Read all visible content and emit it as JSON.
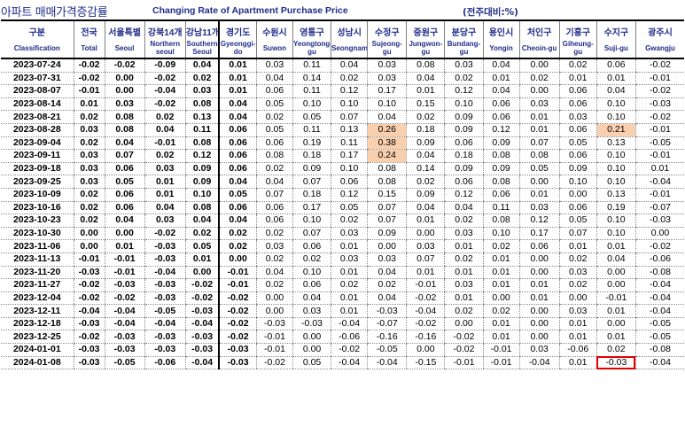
{
  "title": {
    "korean": "아파트 매매가격증감률",
    "english": "Changing Rate of Apartment Purchase Price",
    "unit": "(전주대비:%)"
  },
  "columns": [
    {
      "ko": "구분",
      "en": "Classification"
    },
    {
      "ko": "전국",
      "en": "Total"
    },
    {
      "ko": "서울특별시",
      "en": "Seoul"
    },
    {
      "ko": "강북14개구",
      "en": "Northern seoul"
    },
    {
      "ko": "강남11개구",
      "en": "Southern Seoul"
    },
    {
      "ko": "경기도",
      "en": "Gyeonggi-do"
    },
    {
      "ko": "수원시",
      "en": "Suwon"
    },
    {
      "ko": "영통구",
      "en": "Yeongtong-gu"
    },
    {
      "ko": "성남시",
      "en": "Seongnam"
    },
    {
      "ko": "수정구",
      "en": "Sujeong-gu"
    },
    {
      "ko": "중원구",
      "en": "Jungwon-gu"
    },
    {
      "ko": "분당구",
      "en": "Bundang-gu"
    },
    {
      "ko": "용인시",
      "en": "Yongin"
    },
    {
      "ko": "처인구",
      "en": "Cheoin-gu"
    },
    {
      "ko": "기흥구",
      "en": "Giheung-gu"
    },
    {
      "ko": "수지구",
      "en": "Suji-gu"
    },
    {
      "ko": "광주시",
      "en": "Gwangju"
    }
  ],
  "header_display": {
    "ko": [
      "구분",
      "전국",
      "서울특별",
      "강북14개",
      "강남11개",
      "경기도",
      "수원시",
      "영통구",
      "성남시",
      "수정구",
      "중원구",
      "분당구",
      "용인시",
      "처인구",
      "기흥구",
      "수지구",
      "광주시"
    ],
    "en": [
      "Classification",
      "Total",
      "Seoul",
      "Northern seoul",
      "Southern Seoul",
      "Gyeonggi-do",
      "Suwon",
      "Yeongtong-gu",
      "Seongnam",
      "Sujeong-gu",
      "Jungwon-gu",
      "Bundang-gu",
      "Yongin",
      "Cheoin-gu",
      "Giheung-gu",
      "Suji-gu",
      "Gwangju"
    ]
  },
  "rows": [
    [
      "2023-07-24",
      "-0.02",
      "-0.02",
      "-0.09",
      "0.04",
      "0.01",
      "0.03",
      "0.11",
      "0.04",
      "0.03",
      "0.08",
      "0.03",
      "0.04",
      "0.00",
      "0.02",
      "0.06",
      "-0.02"
    ],
    [
      "2023-07-31",
      "-0.02",
      "0.00",
      "-0.02",
      "0.02",
      "0.01",
      "0.04",
      "0.14",
      "0.02",
      "0.03",
      "0.04",
      "0.02",
      "0.01",
      "0.02",
      "0.01",
      "0.01",
      "-0.01"
    ],
    [
      "2023-08-07",
      "-0.01",
      "0.00",
      "-0.04",
      "0.03",
      "0.01",
      "0.06",
      "0.11",
      "0.12",
      "0.17",
      "0.01",
      "0.12",
      "0.04",
      "0.00",
      "0.06",
      "0.04",
      "-0.02"
    ],
    [
      "2023-08-14",
      "0.01",
      "0.03",
      "-0.02",
      "0.08",
      "0.04",
      "0.05",
      "0.10",
      "0.10",
      "0.10",
      "0.15",
      "0.10",
      "0.06",
      "0.03",
      "0.06",
      "0.10",
      "-0.03"
    ],
    [
      "2023-08-21",
      "0.02",
      "0.08",
      "0.02",
      "0.13",
      "0.04",
      "0.02",
      "0.05",
      "0.07",
      "0.04",
      "0.02",
      "0.09",
      "0.06",
      "0.01",
      "0.03",
      "0.10",
      "-0.02"
    ],
    [
      "2023-08-28",
      "0.03",
      "0.08",
      "0.04",
      "0.11",
      "0.06",
      "0.05",
      "0.11",
      "0.13",
      "0.26",
      "0.18",
      "0.09",
      "0.12",
      "0.01",
      "0.06",
      "0.21",
      "-0.01"
    ],
    [
      "2023-09-04",
      "0.02",
      "0.04",
      "-0.01",
      "0.08",
      "0.06",
      "0.06",
      "0.19",
      "0.11",
      "0.38",
      "0.09",
      "0.06",
      "0.09",
      "0.07",
      "0.05",
      "0.13",
      "-0.05"
    ],
    [
      "2023-09-11",
      "0.03",
      "0.07",
      "0.02",
      "0.12",
      "0.06",
      "0.08",
      "0.18",
      "0.17",
      "0.24",
      "0.04",
      "0.18",
      "0.08",
      "0.08",
      "0.06",
      "0.10",
      "-0.01"
    ],
    [
      "2023-09-18",
      "0.03",
      "0.06",
      "0.03",
      "0.09",
      "0.06",
      "0.02",
      "0.09",
      "0.10",
      "0.08",
      "0.14",
      "0.09",
      "0.09",
      "0.05",
      "0.09",
      "0.10",
      "0.01"
    ],
    [
      "2023-09-25",
      "0.03",
      "0.05",
      "0.01",
      "0.09",
      "0.04",
      "0.04",
      "0.07",
      "0.06",
      "0.08",
      "0.02",
      "0.06",
      "0.08",
      "0.00",
      "0.10",
      "0.10",
      "-0.04"
    ],
    [
      "2023-10-09",
      "0.02",
      "0.06",
      "0.01",
      "0.10",
      "0.05",
      "0.07",
      "0.18",
      "0.12",
      "0.15",
      "0.09",
      "0.12",
      "0.06",
      "0.01",
      "0.00",
      "0.13",
      "-0.01"
    ],
    [
      "2023-10-16",
      "0.02",
      "0.06",
      "0.04",
      "0.08",
      "0.06",
      "0.06",
      "0.17",
      "0.05",
      "0.07",
      "0.04",
      "0.04",
      "0.11",
      "0.03",
      "0.06",
      "0.19",
      "-0.07"
    ],
    [
      "2023-10-23",
      "0.02",
      "0.04",
      "0.03",
      "0.04",
      "0.04",
      "0.06",
      "0.10",
      "0.02",
      "0.07",
      "0.01",
      "0.02",
      "0.08",
      "0.12",
      "0.05",
      "0.10",
      "-0.03"
    ],
    [
      "2023-10-30",
      "0.00",
      "0.00",
      "-0.02",
      "0.02",
      "0.02",
      "0.02",
      "0.07",
      "0.03",
      "0.09",
      "0.00",
      "0.03",
      "0.10",
      "0.17",
      "0.07",
      "0.10",
      "0.00"
    ],
    [
      "2023-11-06",
      "0.00",
      "0.01",
      "-0.03",
      "0.05",
      "0.02",
      "0.03",
      "0.06",
      "0.01",
      "0.00",
      "0.03",
      "0.01",
      "0.02",
      "0.06",
      "0.01",
      "0.01",
      "-0.02"
    ],
    [
      "2023-11-13",
      "-0.01",
      "-0.01",
      "-0.03",
      "0.01",
      "0.00",
      "0.02",
      "0.02",
      "0.03",
      "0.03",
      "0.07",
      "0.02",
      "0.01",
      "0.00",
      "0.02",
      "0.04",
      "-0.06"
    ],
    [
      "2023-11-20",
      "-0.03",
      "-0.01",
      "-0.04",
      "0.00",
      "-0.01",
      "0.04",
      "0.10",
      "0.01",
      "0.04",
      "0.01",
      "0.01",
      "0.01",
      "0.00",
      "0.03",
      "0.00",
      "-0.08"
    ],
    [
      "2023-11-27",
      "-0.02",
      "-0.03",
      "-0.03",
      "-0.02",
      "-0.01",
      "0.02",
      "0.06",
      "0.02",
      "0.02",
      "-0.01",
      "0.03",
      "0.01",
      "0.01",
      "0.02",
      "0.00",
      "-0.04"
    ],
    [
      "2023-12-04",
      "-0.02",
      "-0.02",
      "-0.03",
      "-0.02",
      "-0.02",
      "0.00",
      "0.04",
      "0.01",
      "0.04",
      "-0.02",
      "0.01",
      "0.00",
      "0.01",
      "0.00",
      "-0.01",
      "-0.04"
    ],
    [
      "2023-12-11",
      "-0.04",
      "-0.04",
      "-0.05",
      "-0.03",
      "-0.02",
      "0.00",
      "0.03",
      "0.01",
      "-0.03",
      "-0.04",
      "0.02",
      "0.02",
      "0.00",
      "0.03",
      "0.01",
      "-0.04"
    ],
    [
      "2023-12-18",
      "-0.03",
      "-0.04",
      "-0.04",
      "-0.04",
      "-0.02",
      "-0.03",
      "-0.03",
      "-0.04",
      "-0.07",
      "-0.02",
      "0.00",
      "0.01",
      "0.00",
      "0.01",
      "0.00",
      "-0.05"
    ],
    [
      "2023-12-25",
      "-0.02",
      "-0.03",
      "-0.03",
      "-0.03",
      "-0.02",
      "-0.01",
      "0.00",
      "-0.06",
      "-0.16",
      "-0.16",
      "-0.02",
      "0.01",
      "0.00",
      "0.01",
      "0.01",
      "-0.05"
    ],
    [
      "2024-01-01",
      "-0.03",
      "-0.03",
      "-0.03",
      "-0.03",
      "-0.03",
      "-0.01",
      "0.00",
      "-0.02",
      "-0.05",
      "0.00",
      "-0.02",
      "-0.01",
      "0.03",
      "-0.06",
      "0.02",
      "-0.08"
    ],
    [
      "2024-01-08",
      "-0.03",
      "-0.05",
      "-0.06",
      "-0.04",
      "-0.03",
      "-0.02",
      "0.05",
      "-0.04",
      "-0.04",
      "-0.15",
      "-0.01",
      "-0.01",
      "-0.04",
      "0.01",
      "-0.03",
      "-0.04"
    ]
  ],
  "highlight_color": "#f9cfae",
  "box_color": "#e00000"
}
